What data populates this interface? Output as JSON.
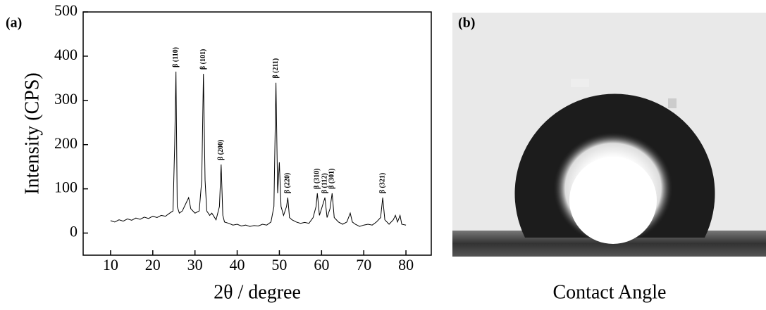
{
  "chart_data": {
    "type": "line",
    "label": "(a)",
    "x_label": "2θ / degree",
    "y_label": "Intensity (CPS)",
    "xlim": [
      3.5,
      86
    ],
    "ylim": [
      -50,
      500
    ],
    "xticks": [
      10,
      20,
      30,
      40,
      50,
      60,
      70,
      80
    ],
    "yticks": [
      0,
      100,
      200,
      300,
      400,
      500
    ],
    "color": "#000000",
    "x": [
      10,
      11,
      12,
      13,
      14,
      15,
      16,
      17,
      18,
      19,
      20,
      21,
      22,
      23,
      24,
      24.8,
      25.2,
      25.5,
      25.8,
      26.3,
      27,
      28,
      28.5,
      29,
      30,
      31,
      31.6,
      32,
      32.4,
      32.8,
      33.5,
      34,
      35,
      35.8,
      36.2,
      36.6,
      37,
      38,
      39,
      40,
      41,
      42,
      43,
      44,
      45,
      46,
      47,
      48,
      48.7,
      49.2,
      49.6,
      50,
      50.4,
      51,
      51.7,
      52,
      52.4,
      53,
      54,
      55,
      56,
      57,
      58,
      58.7,
      59,
      59.5,
      60,
      60.8,
      61.3,
      62,
      62.5,
      63,
      64,
      65,
      66,
      66.8,
      67.3,
      68,
      69,
      70,
      71,
      72,
      73,
      74,
      74.5,
      75,
      76,
      77,
      77.5,
      78,
      78.6,
      79,
      80
    ],
    "values": [
      28,
      25,
      30,
      27,
      32,
      29,
      34,
      31,
      36,
      33,
      38,
      35,
      40,
      38,
      45,
      50,
      200,
      365,
      60,
      45,
      50,
      70,
      80,
      55,
      45,
      50,
      120,
      360,
      120,
      50,
      40,
      45,
      30,
      60,
      155,
      40,
      25,
      22,
      18,
      20,
      16,
      18,
      15,
      17,
      16,
      20,
      18,
      25,
      60,
      340,
      90,
      160,
      60,
      40,
      60,
      80,
      35,
      30,
      25,
      22,
      24,
      22,
      35,
      60,
      90,
      40,
      55,
      80,
      35,
      55,
      90,
      35,
      25,
      20,
      25,
      45,
      25,
      20,
      15,
      18,
      20,
      18,
      25,
      35,
      80,
      30,
      20,
      30,
      40,
      25,
      40,
      20,
      18
    ],
    "annotations": [
      {
        "text": "β (110)",
        "x": 25.5
      },
      {
        "text": "β (101)",
        "x": 32
      },
      {
        "text": "β (200)",
        "x": 36.2
      },
      {
        "text": "β (211)",
        "x": 49.2
      },
      {
        "text": "β (220)",
        "x": 52
      },
      {
        "text": "β (310)",
        "x": 59
      },
      {
        "text": "β (112)",
        "x": 60.8
      },
      {
        "text": "β (301)",
        "x": 62.5
      },
      {
        "text": "β (321)",
        "x": 74.5
      }
    ]
  },
  "photo": {
    "label": "(b)",
    "caption": "Contact Angle"
  }
}
